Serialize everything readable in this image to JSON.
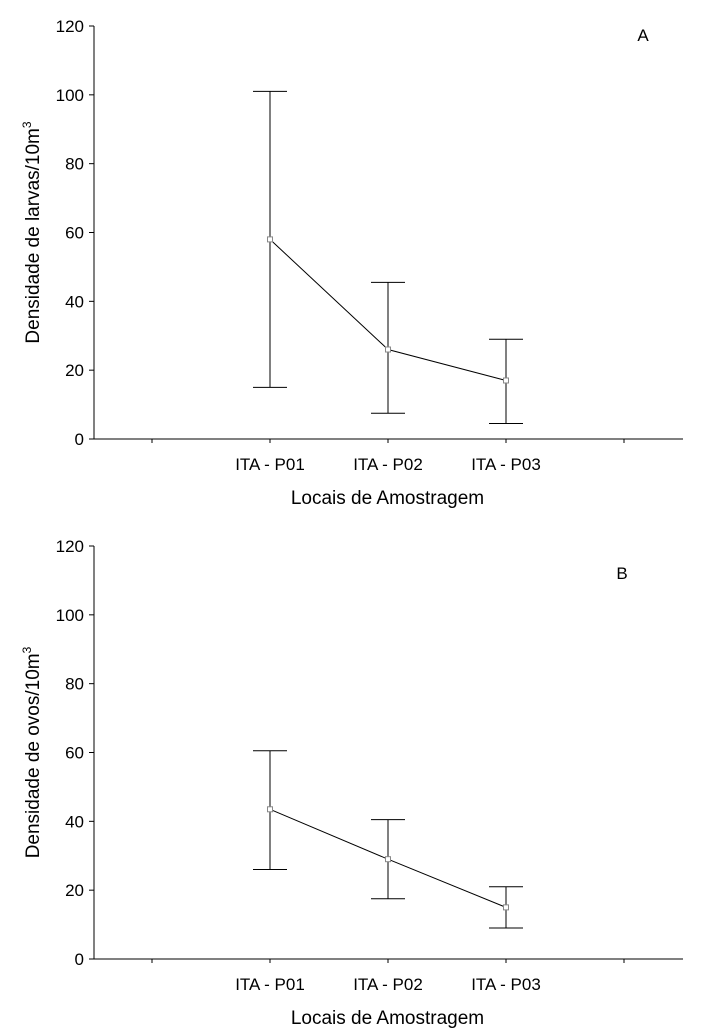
{
  "chart_data": [
    {
      "type": "line",
      "panel_label": "A",
      "xlabel": "Locais de Amostragem",
      "ylabel": "Densidade de larvas/10m",
      "ylabel_superscript": "3",
      "categories": [
        "ITA - P01",
        "ITA - P02",
        "ITA - P03"
      ],
      "ylim": [
        0,
        120
      ],
      "yticks": [
        0,
        20,
        40,
        60,
        80,
        100,
        120
      ],
      "series": [
        {
          "values": [
            58,
            26,
            17
          ],
          "lower": [
            15,
            7.5,
            4.5
          ],
          "upper": [
            101,
            45.5,
            29
          ]
        }
      ]
    },
    {
      "type": "line",
      "panel_label": "B",
      "xlabel": "Locais de Amostragem",
      "ylabel": "Densidade de ovos/10m",
      "ylabel_superscript": "3",
      "categories": [
        "ITA - P01",
        "ITA - P02",
        "ITA - P03"
      ],
      "ylim": [
        0,
        120
      ],
      "yticks": [
        0,
        20,
        40,
        60,
        80,
        100,
        120
      ],
      "series": [
        {
          "values": [
            43.5,
            29,
            15
          ],
          "lower": [
            26,
            17.5,
            9
          ],
          "upper": [
            60.5,
            40.5,
            21
          ]
        }
      ]
    }
  ]
}
